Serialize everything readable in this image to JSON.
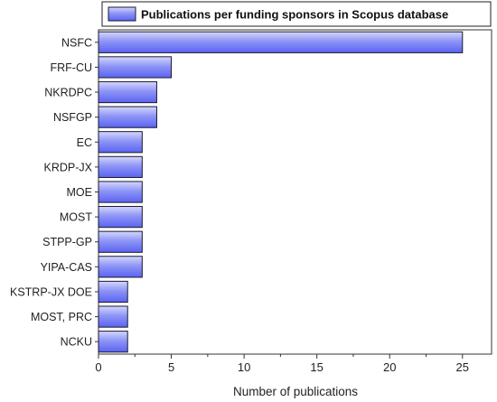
{
  "chart_data": {
    "type": "bar",
    "orientation": "horizontal",
    "categories": [
      "NSFC",
      "FRF-CU",
      "NKRDPC",
      "NSFGP",
      "EC",
      "KRDP-JX",
      "MOE",
      "MOST",
      "STPP-GP",
      "YIPA-CAS",
      "KSTRP-JX DOE",
      "MOST, PRC",
      "NCKU"
    ],
    "series": [
      {
        "name": "Publications per funding sponsors in Scopus database",
        "values": [
          25,
          5,
          4,
          4,
          3,
          3,
          3,
          3,
          3,
          3,
          2,
          2,
          2
        ]
      }
    ],
    "xlabel": "Number of publications",
    "ylabel": "",
    "xlim": [
      0,
      27
    ],
    "xticks": [
      "0",
      "5",
      "10",
      "15",
      "20",
      "25"
    ],
    "legend_position": "top",
    "grid": false,
    "colors": {
      "bar_light": "#c9cdfa",
      "bar_dark": "#5b63f2",
      "bar_edge": "#1a1a2e",
      "axis": "#333333"
    }
  }
}
